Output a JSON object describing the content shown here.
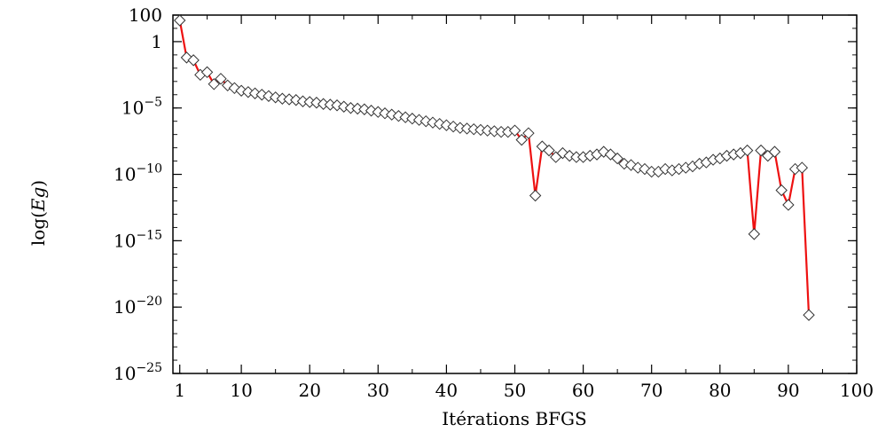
{
  "chart_data": {
    "type": "line",
    "title": "",
    "xlabel": "Itérations BFGS",
    "ylabel": "log(Eg)",
    "xlim": [
      0,
      100
    ],
    "ylim": [
      -25,
      2
    ],
    "yscale": "log10",
    "x_ticks": [
      {
        "value": 1,
        "label": "1"
      },
      {
        "value": 10,
        "label": "10"
      },
      {
        "value": 20,
        "label": "20"
      },
      {
        "value": 30,
        "label": "30"
      },
      {
        "value": 40,
        "label": "40"
      },
      {
        "value": 50,
        "label": "50"
      },
      {
        "value": 60,
        "label": "60"
      },
      {
        "value": 70,
        "label": "70"
      },
      {
        "value": 80,
        "label": "80"
      },
      {
        "value": 90,
        "label": "90"
      },
      {
        "value": 100,
        "label": "100"
      }
    ],
    "y_ticks": [
      {
        "value": 2,
        "base": "100",
        "exp": ""
      },
      {
        "value": 0,
        "base": "1",
        "exp": ""
      },
      {
        "value": -5,
        "base": "10",
        "exp": "−5"
      },
      {
        "value": -10,
        "base": "10",
        "exp": "−10"
      },
      {
        "value": -15,
        "base": "10",
        "exp": "−15"
      },
      {
        "value": -20,
        "base": "10",
        "exp": "−20"
      },
      {
        "value": -25,
        "base": "10",
        "exp": "−25"
      }
    ],
    "line_color": "#ee1111",
    "marker": "open-diamond",
    "grid": false,
    "series": [
      {
        "x": [
          1,
          2,
          3,
          4,
          5,
          6,
          7,
          8,
          9,
          10,
          11,
          12,
          13,
          14,
          15,
          16,
          17,
          18,
          19,
          20,
          21,
          22,
          23,
          24,
          25,
          26,
          27,
          28,
          29,
          30,
          31,
          32,
          33,
          34,
          35,
          36,
          37,
          38,
          39,
          40,
          41,
          42,
          43,
          44,
          45,
          46,
          47,
          48,
          49,
          50,
          51,
          52,
          53,
          54,
          55,
          56,
          57,
          58,
          59,
          60,
          61,
          62,
          63,
          64,
          65,
          66,
          67,
          68,
          69,
          70,
          71,
          72,
          73,
          74,
          75,
          76,
          77,
          78,
          79,
          80,
          81,
          82,
          83,
          84,
          85,
          86,
          87,
          88,
          89,
          90,
          91,
          92,
          93
        ],
        "y": [
          1.6,
          -1.2,
          -1.4,
          -2.5,
          -2.3,
          -3.2,
          -2.8,
          -3.3,
          -3.5,
          -3.7,
          -3.8,
          -3.9,
          -4.0,
          -4.1,
          -4.2,
          -4.3,
          -4.35,
          -4.4,
          -4.5,
          -4.55,
          -4.6,
          -4.7,
          -4.75,
          -4.8,
          -4.9,
          -5.0,
          -5.05,
          -5.1,
          -5.2,
          -5.3,
          -5.4,
          -5.5,
          -5.6,
          -5.7,
          -5.8,
          -5.9,
          -6.0,
          -6.1,
          -6.2,
          -6.3,
          -6.4,
          -6.5,
          -6.55,
          -6.6,
          -6.65,
          -6.7,
          -6.75,
          -6.8,
          -6.8,
          -6.7,
          -7.4,
          -6.9,
          -11.6,
          -7.9,
          -8.2,
          -8.7,
          -8.4,
          -8.6,
          -8.7,
          -8.7,
          -8.6,
          -8.5,
          -8.3,
          -8.5,
          -8.8,
          -9.2,
          -9.3,
          -9.5,
          -9.6,
          -9.8,
          -9.8,
          -9.6,
          -9.7,
          -9.6,
          -9.5,
          -9.4,
          -9.2,
          -9.1,
          -8.9,
          -8.8,
          -8.6,
          -8.5,
          -8.4,
          -8.2,
          -14.5,
          -8.2,
          -8.6,
          -8.3,
          -11.2,
          -12.3,
          -9.6,
          -9.5,
          -20.6
        ]
      }
    ]
  }
}
